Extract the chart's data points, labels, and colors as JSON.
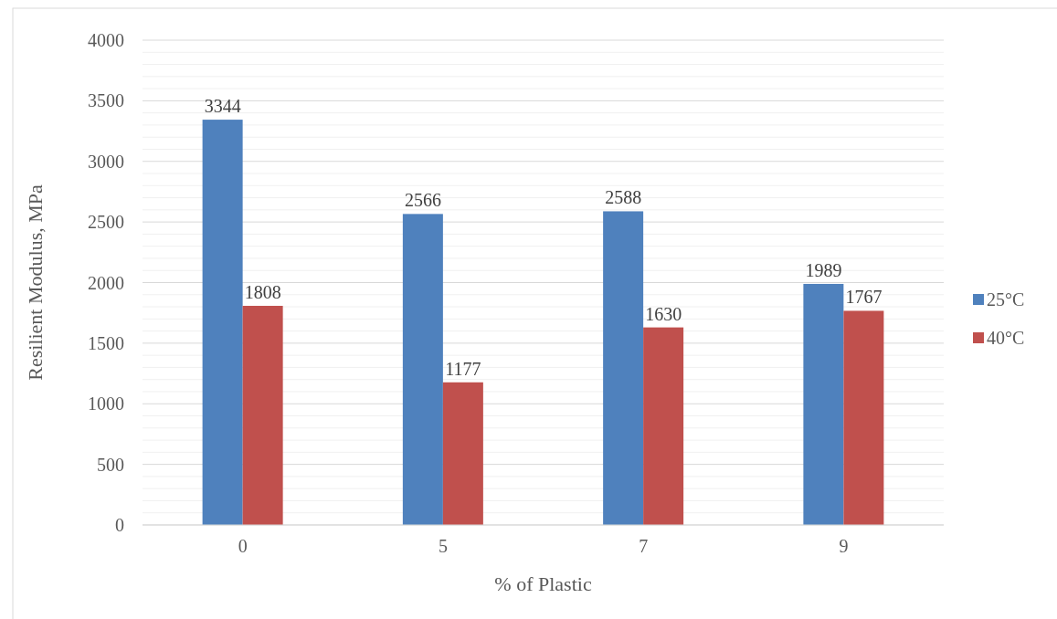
{
  "chart_data": {
    "type": "bar",
    "xlabel": "% of Plastic",
    "ylabel": "Resilient Modulus, MPa",
    "categories": [
      "0",
      "5",
      "7",
      "9"
    ],
    "series": [
      {
        "name": "25°C",
        "color": "#4f81bd",
        "values": [
          3344,
          2566,
          2588,
          1989
        ]
      },
      {
        "name": "40°C",
        "color": "#c0504d",
        "values": [
          1808,
          1177,
          1630,
          1767
        ]
      }
    ],
    "ylim": [
      0,
      4000
    ],
    "yticks": [
      0,
      {
        "value": 100,
        "label": null
      },
      {
        "value": 200,
        "label": null
      },
      {
        "value": 300,
        "label": null
      },
      {
        "value": 400,
        "label": null
      },
      500,
      {
        "value": 600,
        "label": null
      },
      {
        "value": 700,
        "label": null
      },
      {
        "value": 800,
        "label": null
      },
      {
        "value": 900,
        "label": null
      },
      1000,
      {
        "value": 1100,
        "label": null
      },
      {
        "value": 1200,
        "label": null
      },
      {
        "value": 1300,
        "label": null
      },
      {
        "value": 1400,
        "label": null
      },
      1500,
      {
        "value": 1600,
        "label": null
      },
      {
        "value": 1700,
        "label": null
      },
      {
        "value": 1800,
        "label": null
      },
      {
        "value": 1900,
        "label": null
      },
      2000,
      {
        "value": 2100,
        "label": null
      },
      {
        "value": 2200,
        "label": null
      },
      {
        "value": 2300,
        "label": null
      },
      {
        "value": 2400,
        "label": null
      },
      2500,
      {
        "value": 2600,
        "label": null
      },
      {
        "value": 2700,
        "label": null
      },
      {
        "value": 2800,
        "label": null
      },
      {
        "value": 2900,
        "label": null
      },
      3000,
      {
        "value": 3100,
        "label": null
      },
      {
        "value": 3200,
        "label": null
      },
      {
        "value": 3300,
        "label": null
      },
      {
        "value": 3400,
        "label": null
      },
      3500,
      {
        "value": 3600,
        "label": null
      },
      {
        "value": 3700,
        "label": null
      },
      {
        "value": 3800,
        "label": null
      },
      {
        "value": 3900,
        "label": null
      },
      4000
    ],
    "grid": "y",
    "legend": "right",
    "data_labels": true
  }
}
